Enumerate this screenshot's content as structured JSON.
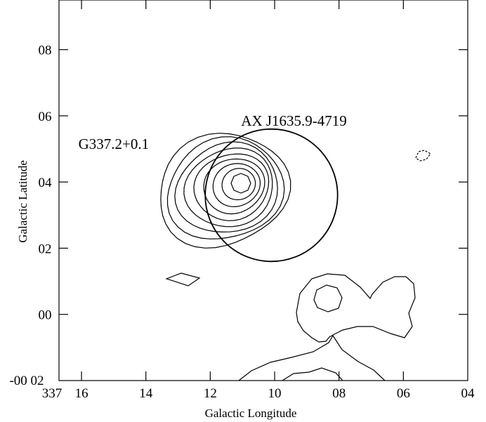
{
  "chart_data": {
    "type": "contour",
    "xlabel": "Galactic Longitude",
    "ylabel": "Galactic Latitude",
    "xlim": [
      16.7,
      4.0
    ],
    "ylim": [
      -2.0,
      9.5
    ],
    "x_ticks": [
      {
        "value": 16.0,
        "label": "16"
      },
      {
        "value": 14.0,
        "label": "14"
      },
      {
        "value": 12.0,
        "label": "12"
      },
      {
        "value": 10.0,
        "label": "10"
      },
      {
        "value": 8.0,
        "label": "08"
      },
      {
        "value": 6.0,
        "label": "06"
      },
      {
        "value": 4.0,
        "label": "04"
      }
    ],
    "x_origin_label": "337",
    "y_ticks": [
      {
        "value": 8.0,
        "label": "08"
      },
      {
        "value": 6.0,
        "label": "06"
      },
      {
        "value": 4.0,
        "label": "04"
      },
      {
        "value": 2.0,
        "label": "02"
      },
      {
        "value": 0.0,
        "label": "00"
      }
    ],
    "y_origin_label": "-00 02",
    "annotations": [
      {
        "text": "G337.2+0.1",
        "x": 15.0,
        "y": 5.0
      },
      {
        "text": "AX J1635.9-4719",
        "x": 9.4,
        "y": 5.7
      }
    ],
    "error_circle": {
      "x": 10.1,
      "y": 3.6,
      "r": 2.0,
      "label": "AX J1635.9-4719"
    },
    "source_peak": {
      "x": 10.9,
      "y": 3.9,
      "label": "G337.2+0.1"
    },
    "contour_levels": 9,
    "grid": false
  }
}
